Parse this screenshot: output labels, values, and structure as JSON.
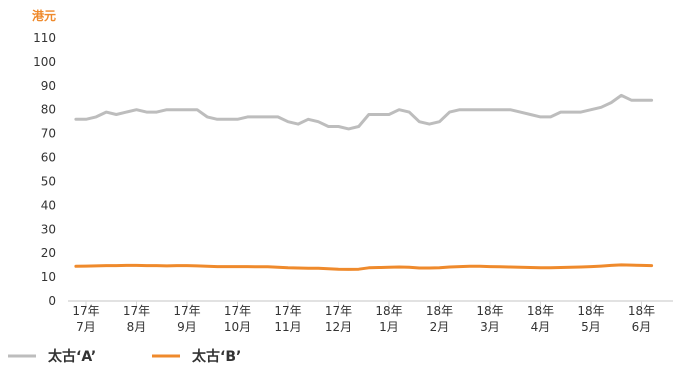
{
  "chart_data": {
    "type": "line",
    "ylabel": "港元",
    "ylim": [
      0,
      110
    ],
    "yticks": [
      0,
      10,
      20,
      30,
      40,
      50,
      60,
      70,
      80,
      90,
      100,
      110
    ],
    "grid": false,
    "legend_placement": "bottom-left",
    "x_tick_labels": [
      {
        "year": "17年",
        "month": "7月"
      },
      {
        "year": "17年",
        "month": "8月"
      },
      {
        "year": "17年",
        "month": "9月"
      },
      {
        "year": "17年",
        "month": "10月"
      },
      {
        "year": "17年",
        "month": "11月"
      },
      {
        "year": "17年",
        "month": "12月"
      },
      {
        "year": "18年",
        "month": "1月"
      },
      {
        "year": "18年",
        "month": "2月"
      },
      {
        "year": "18年",
        "month": "3月"
      },
      {
        "year": "18年",
        "month": "4月"
      },
      {
        "year": "18年",
        "month": "5月"
      },
      {
        "year": "18年",
        "month": "6月"
      }
    ],
    "x_tick_positions": [
      0,
      1,
      2,
      3,
      4,
      5,
      6,
      7,
      8,
      9,
      10,
      11
    ],
    "series": [
      {
        "name": "太古‘A’",
        "color": "#bdbdbd",
        "x": [
          -0.2,
          0,
          0.2,
          0.4,
          0.6,
          0.8,
          1,
          1.2,
          1.4,
          1.6,
          1.8,
          2,
          2.2,
          2.4,
          2.6,
          2.8,
          3,
          3.2,
          3.4,
          3.6,
          3.8,
          4,
          4.2,
          4.4,
          4.6,
          4.8,
          5,
          5.2,
          5.4,
          5.6,
          5.8,
          6,
          6.2,
          6.4,
          6.6,
          6.8,
          7,
          7.2,
          7.4,
          7.6,
          7.8,
          8,
          8.2,
          8.4,
          8.6,
          8.8,
          9,
          9.2,
          9.4,
          9.6,
          9.8,
          10,
          10.2,
          10.4,
          10.6,
          10.8,
          11,
          11.2
        ],
        "values": [
          76,
          76,
          77,
          79,
          78,
          79,
          80,
          79,
          79,
          80,
          80,
          80,
          80,
          77,
          76,
          76,
          76,
          77,
          77,
          77,
          77,
          75,
          74,
          76,
          75,
          73,
          73,
          72,
          73,
          78,
          78,
          78,
          80,
          79,
          75,
          74,
          75,
          79,
          80,
          80,
          80,
          80,
          80,
          80,
          79,
          78,
          77,
          77,
          79,
          79,
          79,
          80,
          81,
          83,
          86,
          84,
          84,
          84
        ]
      },
      {
        "name": "太古‘B’",
        "color": "#ef8a2c",
        "x": [
          -0.2,
          0,
          0.2,
          0.4,
          0.6,
          0.8,
          1,
          1.2,
          1.4,
          1.6,
          1.8,
          2,
          2.2,
          2.4,
          2.6,
          2.8,
          3,
          3.2,
          3.4,
          3.6,
          3.8,
          4,
          4.2,
          4.4,
          4.6,
          4.8,
          5,
          5.2,
          5.4,
          5.6,
          5.8,
          6,
          6.2,
          6.4,
          6.6,
          6.8,
          7,
          7.2,
          7.4,
          7.6,
          7.8,
          8,
          8.2,
          8.4,
          8.6,
          8.8,
          9,
          9.2,
          9.4,
          9.6,
          9.8,
          10,
          10.2,
          10.4,
          10.6,
          10.8,
          11,
          11.2
        ],
        "values": [
          14.5,
          14.6,
          14.7,
          14.8,
          14.8,
          14.9,
          14.9,
          14.8,
          14.8,
          14.7,
          14.8,
          14.8,
          14.7,
          14.5,
          14.4,
          14.4,
          14.4,
          14.4,
          14.3,
          14.3,
          14.1,
          13.9,
          13.8,
          13.7,
          13.7,
          13.5,
          13.3,
          13.2,
          13.3,
          13.9,
          14,
          14.1,
          14.2,
          14.1,
          13.8,
          13.8,
          13.9,
          14.2,
          14.4,
          14.5,
          14.5,
          14.4,
          14.3,
          14.2,
          14.1,
          14,
          13.9,
          13.9,
          14,
          14.1,
          14.2,
          14.4,
          14.6,
          14.9,
          15.1,
          15,
          14.9,
          14.8
        ]
      }
    ]
  }
}
